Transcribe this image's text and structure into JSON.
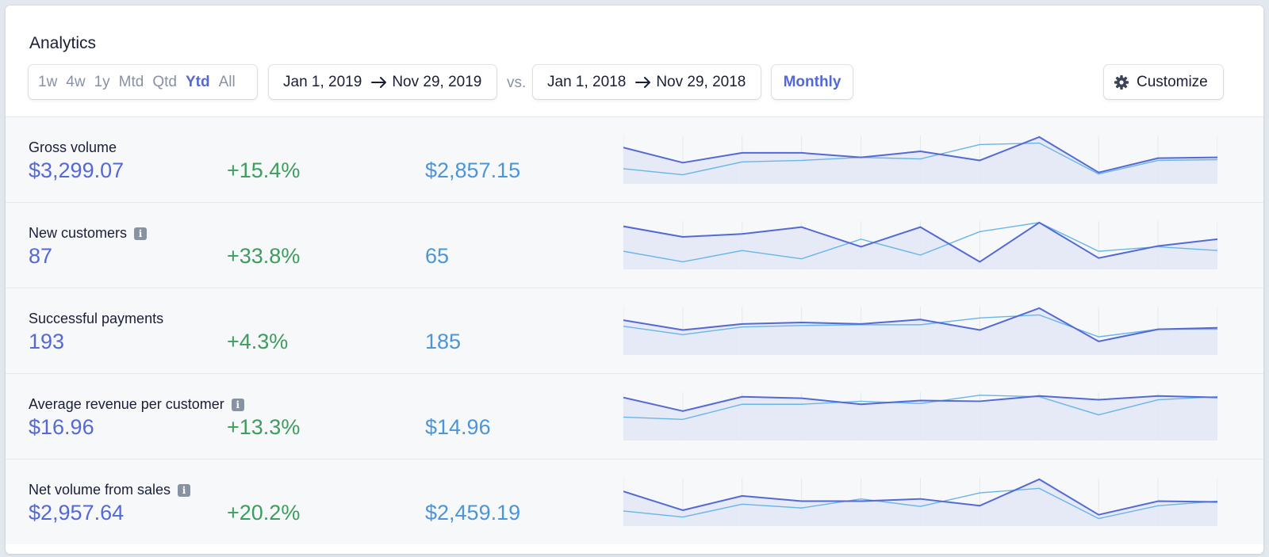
{
  "title": "Analytics",
  "periods": [
    {
      "label": "1w",
      "active": false
    },
    {
      "label": "4w",
      "active": false
    },
    {
      "label": "1y",
      "active": false
    },
    {
      "label": "Mtd",
      "active": false
    },
    {
      "label": "Qtd",
      "active": false
    },
    {
      "label": "Ytd",
      "active": true
    },
    {
      "label": "All",
      "active": false
    }
  ],
  "current_range": {
    "start": "Jan 1, 2019",
    "end": "Nov 29, 2019"
  },
  "vs_label": "vs.",
  "previous_range": {
    "start": "Jan 1, 2018",
    "end": "Nov 29, 2018"
  },
  "interval": "Monthly",
  "customize_label": "Customize",
  "colors": {
    "accent": "#5469d4",
    "positive": "#3d9c5e",
    "previous": "#4b96d8",
    "previous_line": "#68b5e8",
    "area_fill": "#e3e8f6"
  },
  "metrics": [
    {
      "label": "Gross volume",
      "info": false,
      "value": "$3,299.07",
      "change": "+15.4%",
      "previous": "$2,857.15",
      "current_series": [
        48,
        28,
        41,
        41,
        35,
        43,
        31,
        62,
        15,
        34,
        35
      ],
      "previous_series": [
        20,
        12,
        29,
        31,
        35,
        33,
        52,
        54,
        13,
        31,
        32
      ]
    },
    {
      "label": "New customers",
      "info": true,
      "value": "87",
      "change": "+33.8%",
      "previous": "65",
      "current_series": [
        57,
        43,
        47,
        56,
        30,
        56,
        10,
        62,
        15,
        31,
        40
      ],
      "previous_series": [
        24,
        10,
        25,
        14,
        40,
        19,
        50,
        62,
        24,
        30,
        25
      ]
    },
    {
      "label": "Successful payments",
      "info": false,
      "value": "193",
      "change": "+4.3%",
      "previous": "185",
      "current_series": [
        46,
        33,
        41,
        43,
        41,
        47,
        33,
        62,
        18,
        34,
        36
      ],
      "previous_series": [
        38,
        27,
        37,
        39,
        40,
        40,
        49,
        53,
        24,
        34,
        34
      ]
    },
    {
      "label": "Average revenue per customer",
      "info": true,
      "value": "$16.96",
      "change": "+13.3%",
      "previous": "$14.96",
      "current_series": [
        57,
        39,
        58,
        56,
        48,
        53,
        52,
        59,
        54,
        59,
        57
      ],
      "previous_series": [
        31,
        28,
        48,
        48,
        52,
        49,
        60,
        58,
        34,
        54,
        58
      ]
    },
    {
      "label": "Net volume from sales",
      "info": true,
      "value": "$2,957.64",
      "change": "+20.2%",
      "previous": "$2,459.19",
      "current_series": [
        46,
        21,
        40,
        33,
        33,
        36,
        27,
        62,
        15,
        33,
        32
      ],
      "previous_series": [
        20,
        12,
        29,
        24,
        36,
        26,
        44,
        50,
        10,
        27,
        33
      ]
    }
  ]
}
